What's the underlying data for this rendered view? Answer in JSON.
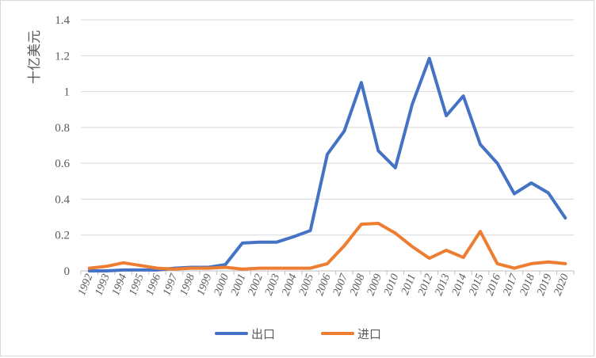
{
  "chart_data": {
    "type": "line",
    "title": "",
    "xlabel": "",
    "ylabel": "十亿美元",
    "ylim": [
      0,
      1.4
    ],
    "yticks": [
      "0",
      "0.2",
      "0.4",
      "0.6",
      "0.8",
      "1",
      "1.2",
      "1.4"
    ],
    "grid": true,
    "legend_position": "bottom",
    "x": [
      "1992",
      "1993",
      "1994",
      "1995",
      "1996",
      "1997",
      "1998",
      "1999",
      "2000",
      "2001",
      "2002",
      "2003",
      "2004",
      "2005",
      "2006",
      "2007",
      "2008",
      "2009",
      "2010",
      "2011",
      "2012",
      "2013",
      "2014",
      "2015",
      "2016",
      "2017",
      "2018",
      "2019",
      "2020"
    ],
    "series": [
      {
        "name": "出口",
        "color": "#4472c4",
        "values": [
          0.0,
          0.0,
          0.005,
          0.005,
          0.005,
          0.015,
          0.02,
          0.02,
          0.035,
          0.155,
          0.16,
          0.16,
          0.19,
          0.225,
          0.65,
          0.78,
          1.05,
          0.67,
          0.575,
          0.93,
          1.185,
          0.865,
          0.975,
          0.705,
          0.6,
          0.43,
          0.49,
          0.435,
          0.295
        ]
      },
      {
        "name": "进口",
        "color": "#ed7d31",
        "values": [
          0.015,
          0.025,
          0.045,
          0.03,
          0.015,
          0.01,
          0.015,
          0.015,
          0.02,
          0.01,
          0.015,
          0.015,
          0.015,
          0.015,
          0.04,
          0.14,
          0.26,
          0.265,
          0.21,
          0.135,
          0.07,
          0.115,
          0.075,
          0.22,
          0.04,
          0.015,
          0.04,
          0.05,
          0.04
        ]
      }
    ]
  }
}
